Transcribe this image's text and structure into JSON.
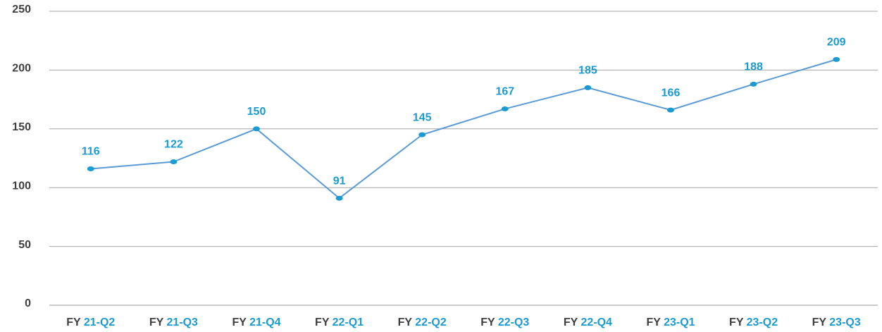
{
  "chart_data": {
    "type": "line",
    "categories": [
      "FY 21-Q2",
      "FY 21-Q3",
      "FY 21-Q4",
      "FY 22-Q1",
      "FY 22-Q2",
      "FY 22-Q3",
      "FY 22-Q4",
      "FY 23-Q1",
      "FY 23-Q2",
      "FY 23-Q3"
    ],
    "values": [
      116,
      122,
      150,
      91,
      145,
      167,
      185,
      166,
      188,
      209
    ],
    "color": "#5b9bd5",
    "marker_color": "#1b9bd1",
    "label_color": "#1b9bd1",
    "ylim": [
      0,
      250
    ],
    "yticks": [
      0,
      50,
      100,
      150,
      200,
      250
    ],
    "grid": true
  }
}
